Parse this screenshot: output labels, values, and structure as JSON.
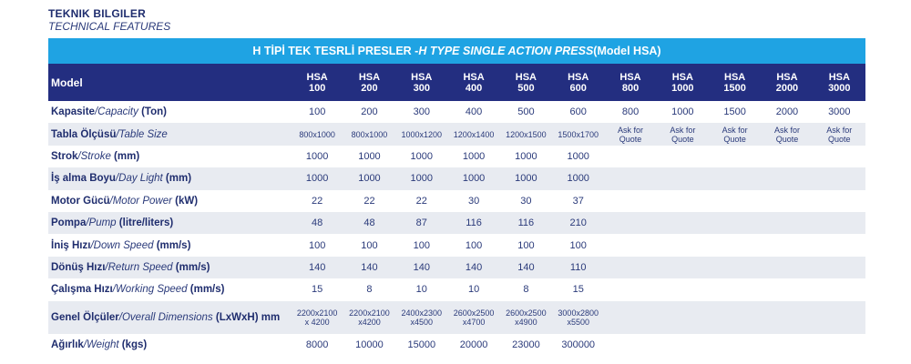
{
  "heading": {
    "tr": "TEKNIK BILGILER",
    "en": "TECHNICAL FEATURES"
  },
  "title": {
    "tr": "H TİPİ TEK TESRLİ PRESLER - ",
    "en": "H TYPE SINGLE ACTION PRESS",
    "model": " (Model HSA)"
  },
  "header": {
    "model_label": "Model",
    "models": [
      [
        "HSA",
        "100"
      ],
      [
        "HSA",
        "200"
      ],
      [
        "HSA",
        "300"
      ],
      [
        "HSA",
        "400"
      ],
      [
        "HSA",
        "500"
      ],
      [
        "HSA",
        "600"
      ],
      [
        "HSA",
        "800"
      ],
      [
        "HSA",
        "1000"
      ],
      [
        "HSA",
        "1500"
      ],
      [
        "HSA",
        "2000"
      ],
      [
        "HSA",
        "3000"
      ]
    ]
  },
  "rows": [
    {
      "tr": "Kapasite",
      "en": "/Capacity",
      "unit": " (Ton)",
      "tall": false,
      "values": [
        [
          "100"
        ],
        [
          "200"
        ],
        [
          "300"
        ],
        [
          "400"
        ],
        [
          "500"
        ],
        [
          "600"
        ],
        [
          "800"
        ],
        [
          "1000"
        ],
        [
          "1500"
        ],
        [
          "2000"
        ],
        [
          "3000"
        ]
      ]
    },
    {
      "tr": "Tabla Ölçüsü",
      "en": "/Table Size",
      "unit": "",
      "tall": false,
      "small": true,
      "values": [
        [
          "800x1000"
        ],
        [
          "800x1000"
        ],
        [
          "1000x1200"
        ],
        [
          "1200x1400"
        ],
        [
          "1200x1500"
        ],
        [
          "1500x1700"
        ],
        [
          "Ask for",
          "Quote"
        ],
        [
          "Ask for",
          "Quote"
        ],
        [
          "Ask for",
          "Quote"
        ],
        [
          "Ask for",
          "Quote"
        ],
        [
          "Ask for",
          "Quote"
        ]
      ]
    },
    {
      "tr": "Strok",
      "en": "/Stroke",
      "unit": " (mm)",
      "tall": false,
      "values": [
        [
          "1000"
        ],
        [
          "1000"
        ],
        [
          "1000"
        ],
        [
          "1000"
        ],
        [
          "1000"
        ],
        [
          "1000"
        ],
        [],
        [],
        [],
        [],
        []
      ]
    },
    {
      "tr": "İş alma Boyu",
      "en": "/Day Light",
      "unit": " (mm)",
      "tall": false,
      "values": [
        [
          "1000"
        ],
        [
          "1000"
        ],
        [
          "1000"
        ],
        [
          "1000"
        ],
        [
          "1000"
        ],
        [
          "1000"
        ],
        [],
        [],
        [],
        [],
        []
      ]
    },
    {
      "tr": "Motor Gücü",
      "en": "/Motor Power",
      "unit": " (kW)",
      "tall": false,
      "values": [
        [
          "22"
        ],
        [
          "22"
        ],
        [
          "22"
        ],
        [
          "30"
        ],
        [
          "30"
        ],
        [
          "37"
        ],
        [],
        [],
        [],
        [],
        []
      ]
    },
    {
      "tr": "Pompa",
      "en": "/Pump",
      "unit": " (litre/liters)",
      "tall": false,
      "values": [
        [
          "48"
        ],
        [
          "48"
        ],
        [
          "87"
        ],
        [
          "116"
        ],
        [
          "116"
        ],
        [
          "210"
        ],
        [],
        [],
        [],
        [],
        []
      ]
    },
    {
      "tr": "İniş Hızı",
      "en": "/Down Speed",
      "unit": " (mm/s)",
      "tall": false,
      "values": [
        [
          "100"
        ],
        [
          "100"
        ],
        [
          "100"
        ],
        [
          "100"
        ],
        [
          "100"
        ],
        [
          "100"
        ],
        [],
        [],
        [],
        [],
        []
      ]
    },
    {
      "tr": "Dönüş Hızı",
      "en": "/Return Speed",
      "unit": " (mm/s)",
      "tall": false,
      "values": [
        [
          "140"
        ],
        [
          "140"
        ],
        [
          "140"
        ],
        [
          "140"
        ],
        [
          "140"
        ],
        [
          "110"
        ],
        [],
        [],
        [],
        [],
        []
      ]
    },
    {
      "tr": "Çalışma Hızı",
      "en": "/Working Speed",
      "unit": " (mm/s)",
      "tall": false,
      "values": [
        [
          "15"
        ],
        [
          "8"
        ],
        [
          "10"
        ],
        [
          "10"
        ],
        [
          "8"
        ],
        [
          "15"
        ],
        [],
        [],
        [],
        [],
        []
      ]
    },
    {
      "tr": "Genel Ölçüler",
      "en": "/Overall Dimensions",
      "unit": " (LxWxH) mm",
      "tall": true,
      "small": true,
      "values": [
        [
          "2200x2100",
          "x 4200"
        ],
        [
          "2200x2100",
          "x4200"
        ],
        [
          "2400x2300",
          "x4500"
        ],
        [
          "2600x2500",
          "x4700"
        ],
        [
          "2600x2500",
          "x4900"
        ],
        [
          "3000x2800",
          "x5500"
        ],
        [],
        [],
        [],
        [],
        []
      ]
    },
    {
      "tr": "Ağırlık",
      "en": "/Weight",
      "unit": " (kgs)",
      "tall": false,
      "values": [
        [
          "8000"
        ],
        [
          "10000"
        ],
        [
          "15000"
        ],
        [
          "20000"
        ],
        [
          "23000"
        ],
        [
          "300000"
        ],
        [],
        [],
        [],
        [],
        []
      ]
    }
  ]
}
